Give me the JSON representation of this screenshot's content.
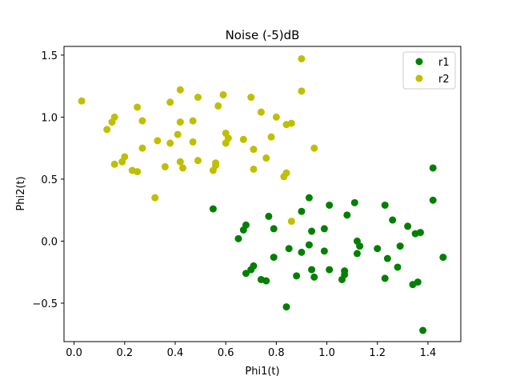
{
  "chart_data": {
    "type": "scatter",
    "title": "Noise (-5)dB",
    "xlabel": "Phi1(t)",
    "ylabel": "Phi2(t)",
    "xlim": [
      -0.04,
      1.53
    ],
    "ylim": [
      -0.81,
      1.57
    ],
    "xticks": [
      0.0,
      0.2,
      0.4,
      0.6,
      0.8,
      1.0,
      1.2,
      1.4
    ],
    "xtick_labels": [
      "0.0",
      "0.2",
      "0.4",
      "0.6",
      "0.8",
      "1.0",
      "1.2",
      "1.4"
    ],
    "yticks": [
      -0.5,
      0.0,
      0.5,
      1.0,
      1.5
    ],
    "ytick_labels": [
      "−0.5",
      "0.0",
      "0.5",
      "1.0",
      "1.5"
    ],
    "grid": false,
    "legend": "top-right",
    "series": [
      {
        "name": "r1",
        "color": "#008000",
        "points": [
          [
            0.55,
            0.26
          ],
          [
            0.65,
            0.02
          ],
          [
            0.67,
            0.09
          ],
          [
            0.68,
            0.13
          ],
          [
            0.68,
            -0.26
          ],
          [
            0.7,
            -0.23
          ],
          [
            0.71,
            -0.2
          ],
          [
            0.74,
            -0.31
          ],
          [
            0.76,
            -0.32
          ],
          [
            0.77,
            0.2
          ],
          [
            0.79,
            0.1
          ],
          [
            0.79,
            -0.13
          ],
          [
            0.84,
            -0.53
          ],
          [
            0.85,
            -0.06
          ],
          [
            0.88,
            -0.28
          ],
          [
            0.9,
            0.24
          ],
          [
            0.9,
            -0.09
          ],
          [
            0.93,
            0.35
          ],
          [
            0.93,
            -0.03
          ],
          [
            0.94,
            0.08
          ],
          [
            0.94,
            -0.23
          ],
          [
            0.95,
            -0.29
          ],
          [
            0.99,
            0.1
          ],
          [
            0.99,
            -0.08
          ],
          [
            1.01,
            0.29
          ],
          [
            1.01,
            -0.23
          ],
          [
            1.06,
            -0.31
          ],
          [
            1.07,
            -0.24
          ],
          [
            1.07,
            -0.27
          ],
          [
            1.08,
            0.21
          ],
          [
            1.11,
            0.31
          ],
          [
            1.12,
            0.0
          ],
          [
            1.13,
            -0.04
          ],
          [
            1.12,
            -0.1
          ],
          [
            1.2,
            -0.06
          ],
          [
            1.23,
            0.29
          ],
          [
            1.23,
            -0.3
          ],
          [
            1.24,
            -0.14
          ],
          [
            1.26,
            0.17
          ],
          [
            1.28,
            -0.21
          ],
          [
            1.29,
            -0.04
          ],
          [
            1.32,
            0.12
          ],
          [
            1.34,
            -0.35
          ],
          [
            1.35,
            0.06
          ],
          [
            1.36,
            -0.33
          ],
          [
            1.37,
            0.07
          ],
          [
            1.38,
            -0.72
          ],
          [
            1.42,
            0.59
          ],
          [
            1.42,
            0.33
          ],
          [
            1.46,
            -0.13
          ]
        ]
      },
      {
        "name": "r2",
        "color": "#bfbf00",
        "points": [
          [
            0.03,
            1.13
          ],
          [
            0.13,
            0.9
          ],
          [
            0.15,
            0.96
          ],
          [
            0.16,
            1.0
          ],
          [
            0.16,
            0.62
          ],
          [
            0.19,
            0.64
          ],
          [
            0.2,
            0.68
          ],
          [
            0.23,
            0.57
          ],
          [
            0.25,
            0.56
          ],
          [
            0.25,
            1.08
          ],
          [
            0.27,
            0.97
          ],
          [
            0.27,
            0.75
          ],
          [
            0.32,
            0.35
          ],
          [
            0.33,
            0.81
          ],
          [
            0.36,
            0.6
          ],
          [
            0.38,
            1.12
          ],
          [
            0.38,
            0.79
          ],
          [
            0.41,
            0.86
          ],
          [
            0.42,
            1.22
          ],
          [
            0.42,
            0.64
          ],
          [
            0.42,
            0.96
          ],
          [
            0.43,
            0.59
          ],
          [
            0.47,
            0.97
          ],
          [
            0.47,
            0.8
          ],
          [
            0.49,
            1.16
          ],
          [
            0.49,
            0.65
          ],
          [
            0.55,
            0.57
          ],
          [
            0.56,
            0.63
          ],
          [
            0.56,
            0.61
          ],
          [
            0.57,
            1.09
          ],
          [
            0.59,
            1.18
          ],
          [
            0.6,
            0.87
          ],
          [
            0.6,
            0.79
          ],
          [
            0.61,
            0.83
          ],
          [
            0.67,
            0.82
          ],
          [
            0.7,
            1.16
          ],
          [
            0.71,
            0.74
          ],
          [
            0.71,
            0.58
          ],
          [
            0.74,
            1.04
          ],
          [
            0.76,
            0.67
          ],
          [
            0.78,
            0.84
          ],
          [
            0.8,
            1.0
          ],
          [
            0.83,
            0.52
          ],
          [
            0.84,
            0.94
          ],
          [
            0.84,
            0.55
          ],
          [
            0.86,
            0.95
          ],
          [
            0.86,
            0.16
          ],
          [
            0.9,
            1.47
          ],
          [
            0.9,
            1.21
          ],
          [
            0.95,
            0.75
          ]
        ]
      }
    ]
  }
}
